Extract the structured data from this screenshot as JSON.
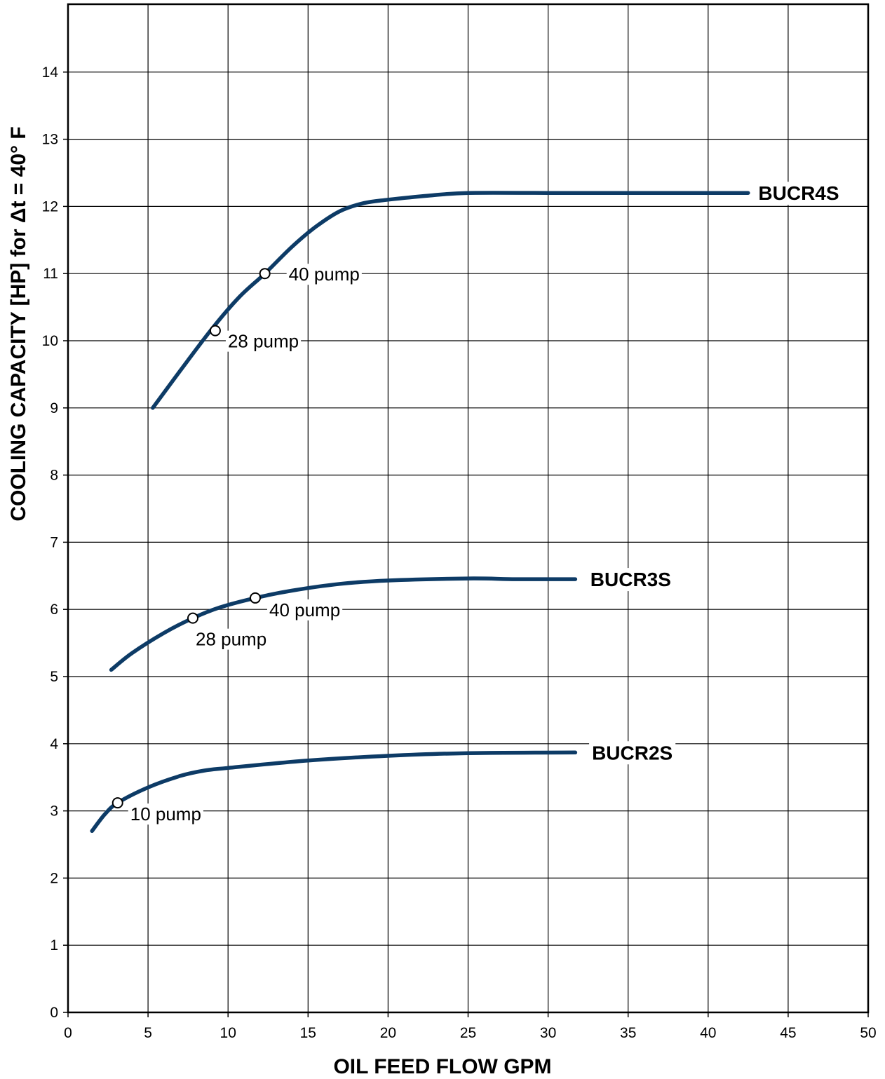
{
  "chart_data": {
    "type": "line",
    "title": "",
    "xlabel": "OIL FEED FLOW  GPM",
    "ylabel": "COOLING CAPACITY [HP] for Δt = 40° F",
    "xlim": [
      0,
      50
    ],
    "ylim": [
      0,
      14
    ],
    "y_axis_top": 14.9,
    "xticks": [
      0,
      5,
      10,
      15,
      20,
      25,
      30,
      35,
      40,
      45,
      50
    ],
    "yticks": [
      0,
      1,
      2,
      3,
      4,
      5,
      6,
      7,
      8,
      9,
      10,
      11,
      12,
      13,
      14
    ],
    "grid": true,
    "line_color": "#0d3b66",
    "series": [
      {
        "name": "BUCR4S",
        "label_anchor": [
          42.7,
          12.2
        ],
        "points": [
          [
            5.3,
            9.0
          ],
          [
            7.0,
            9.55
          ],
          [
            9.0,
            10.18
          ],
          [
            10.7,
            10.65
          ],
          [
            12.3,
            11.0
          ],
          [
            14.0,
            11.4
          ],
          [
            15.5,
            11.7
          ],
          [
            17.0,
            11.93
          ],
          [
            18.5,
            12.05
          ],
          [
            20.0,
            12.1
          ],
          [
            22.5,
            12.16
          ],
          [
            25.0,
            12.2
          ],
          [
            30.0,
            12.2
          ],
          [
            35.0,
            12.2
          ],
          [
            40.0,
            12.2
          ],
          [
            42.5,
            12.2
          ]
        ],
        "pumps": [
          {
            "label": "28 pump",
            "x": 9.2,
            "y": 10.15
          },
          {
            "label": "40 pump",
            "x": 12.3,
            "y": 11.0
          }
        ]
      },
      {
        "name": "BUCR3S",
        "label_anchor": [
          32.2,
          6.45
        ],
        "points": [
          [
            2.7,
            5.1
          ],
          [
            4.0,
            5.35
          ],
          [
            6.0,
            5.65
          ],
          [
            7.8,
            5.87
          ],
          [
            9.5,
            6.03
          ],
          [
            11.7,
            6.17
          ],
          [
            14.0,
            6.28
          ],
          [
            17.0,
            6.38
          ],
          [
            20.0,
            6.43
          ],
          [
            25.0,
            6.46
          ],
          [
            28.0,
            6.45
          ],
          [
            31.7,
            6.45
          ]
        ],
        "pumps": [
          {
            "label": "28 pump",
            "x": 7.8,
            "y": 5.87
          },
          {
            "label": "40 pump",
            "x": 11.7,
            "y": 6.17
          }
        ]
      },
      {
        "name": "BUCR2S",
        "label_anchor": [
          32.3,
          3.87
        ],
        "points": [
          [
            1.5,
            2.7
          ],
          [
            2.3,
            2.95
          ],
          [
            3.1,
            3.12
          ],
          [
            5.0,
            3.35
          ],
          [
            7.0,
            3.52
          ],
          [
            8.5,
            3.6
          ],
          [
            10.0,
            3.64
          ],
          [
            15.0,
            3.75
          ],
          [
            20.0,
            3.82
          ],
          [
            25.0,
            3.86
          ],
          [
            31.7,
            3.87
          ]
        ],
        "pumps": [
          {
            "label": "10 pump",
            "x": 3.1,
            "y": 3.12
          }
        ]
      }
    ]
  }
}
